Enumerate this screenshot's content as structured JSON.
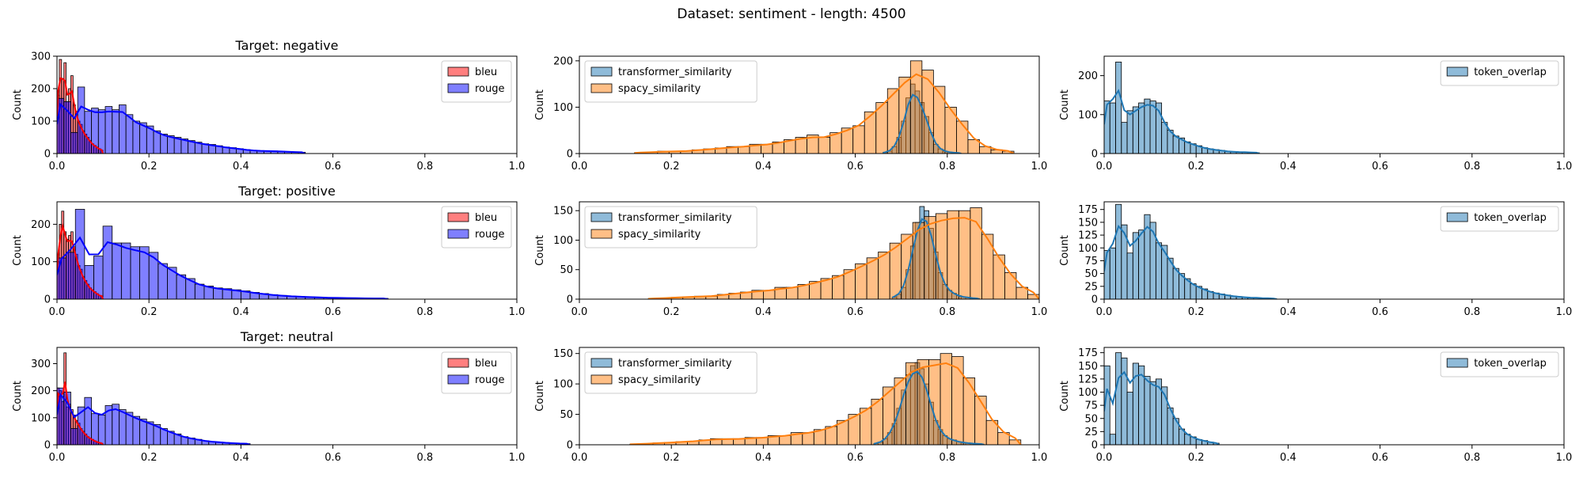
{
  "suptitle": "Dataset: sentiment - length: 4500",
  "colors": {
    "bleu": "#ff0000",
    "rouge": "#0000ff",
    "transformer_similarity": "#1f77b4",
    "spacy_similarity": "#ff7f0e",
    "token_overlap": "#1f77b4"
  },
  "chart_data": [
    {
      "type": "histogram",
      "row": 0,
      "col": 0,
      "title": "Target: negative",
      "ylabel": "Count",
      "xlim": [
        0,
        1
      ],
      "ylim": [
        0,
        300
      ],
      "xticks": [
        0.0,
        0.2,
        0.4,
        0.6,
        0.8,
        1.0
      ],
      "yticks": [
        0,
        100,
        200,
        300
      ],
      "legend": "top-right",
      "kde": true,
      "series": [
        {
          "name": "bleu",
          "color": "#ff0000",
          "bin_start": 0.0,
          "bin_width": 0.005,
          "counts": [
            180,
            290,
            230,
            280,
            160,
            200,
            240,
            150,
            130,
            100,
            90,
            70,
            60,
            50,
            40,
            30,
            25,
            20,
            15,
            10
          ]
        },
        {
          "name": "rouge",
          "color": "#0000ff",
          "bin_start": 0.0,
          "bin_width": 0.015,
          "counts": [
            170,
            160,
            65,
            205,
            130,
            140,
            135,
            145,
            135,
            150,
            120,
            100,
            95,
            85,
            70,
            60,
            55,
            50,
            45,
            40,
            35,
            30,
            28,
            24,
            20,
            18,
            15,
            12,
            10,
            9,
            8,
            8,
            7,
            6,
            5,
            4
          ]
        }
      ]
    },
    {
      "type": "histogram",
      "row": 0,
      "col": 1,
      "ylabel": "Count",
      "xlim": [
        0,
        1
      ],
      "ylim": [
        0,
        210
      ],
      "xticks": [
        0.0,
        0.2,
        0.4,
        0.6,
        0.8,
        1.0
      ],
      "yticks": [
        0,
        100,
        200
      ],
      "legend": "top-left",
      "kde": true,
      "series": [
        {
          "name": "transformer_similarity",
          "color": "#1f77b4",
          "bin_start": 0.66,
          "bin_width": 0.01,
          "counts": [
            2,
            5,
            15,
            35,
            70,
            120,
            150,
            135,
            110,
            80,
            45,
            20,
            10,
            5,
            3,
            2,
            1
          ]
        },
        {
          "name": "spacy_similarity",
          "color": "#ff7f0e",
          "bin_start": 0.12,
          "bin_width": 0.025,
          "counts": [
            2,
            3,
            5,
            5,
            5,
            8,
            10,
            12,
            15,
            15,
            20,
            20,
            25,
            30,
            35,
            40,
            35,
            45,
            55,
            60,
            90,
            110,
            140,
            165,
            200,
            180,
            145,
            100,
            70,
            30,
            15,
            8,
            5
          ]
        }
      ]
    },
    {
      "type": "histogram",
      "row": 0,
      "col": 2,
      "ylabel": "Count",
      "xlim": [
        0,
        1
      ],
      "ylim": [
        0,
        250
      ],
      "xticks": [
        0.0,
        0.2,
        0.4,
        0.6,
        0.8,
        1.0
      ],
      "yticks": [
        0,
        100,
        200
      ],
      "legend": "top-right",
      "kde": true,
      "series": [
        {
          "name": "token_overlap",
          "color": "#1f77b4",
          "bin_start": 0.0,
          "bin_width": 0.0125,
          "counts": [
            135,
            130,
            235,
            80,
            110,
            120,
            130,
            140,
            135,
            130,
            80,
            60,
            45,
            40,
            30,
            25,
            20,
            15,
            12,
            10,
            8,
            6,
            5,
            4,
            4,
            3,
            2
          ]
        }
      ]
    },
    {
      "type": "histogram",
      "row": 1,
      "col": 0,
      "title": "Target: positive",
      "ylabel": "Count",
      "xlim": [
        0,
        1
      ],
      "ylim": [
        0,
        260
      ],
      "xticks": [
        0.0,
        0.2,
        0.4,
        0.6,
        0.8,
        1.0
      ],
      "yticks": [
        0,
        100,
        200
      ],
      "legend": "top-right",
      "kde": true,
      "series": [
        {
          "name": "bleu",
          "color": "#ff0000",
          "bin_start": 0.0,
          "bin_width": 0.005,
          "counts": [
            100,
            200,
            235,
            180,
            160,
            170,
            180,
            140,
            120,
            90,
            80,
            60,
            50,
            40,
            30,
            25,
            20,
            15,
            10,
            8
          ]
        },
        {
          "name": "rouge",
          "color": "#0000ff",
          "bin_start": 0.0,
          "bin_width": 0.02,
          "counts": [
            110,
            125,
            240,
            90,
            115,
            195,
            150,
            150,
            140,
            140,
            125,
            95,
            85,
            65,
            55,
            40,
            35,
            30,
            28,
            25,
            22,
            18,
            15,
            12,
            10,
            8,
            7,
            6,
            5,
            4,
            4,
            3,
            3,
            2,
            2,
            2
          ]
        }
      ]
    },
    {
      "type": "histogram",
      "row": 1,
      "col": 1,
      "ylabel": "Count",
      "xlim": [
        0,
        1
      ],
      "ylim": [
        0,
        165
      ],
      "xticks": [
        0.0,
        0.2,
        0.4,
        0.6,
        0.8,
        1.0
      ],
      "yticks": [
        0,
        50,
        100,
        150
      ],
      "legend": "top-left",
      "kde": true,
      "series": [
        {
          "name": "transformer_similarity",
          "color": "#1f77b4",
          "bin_start": 0.68,
          "bin_width": 0.01,
          "counts": [
            3,
            8,
            20,
            50,
            90,
            130,
            157,
            150,
            120,
            80,
            45,
            25,
            15,
            10,
            6,
            4,
            3,
            2,
            1
          ]
        },
        {
          "name": "spacy_similarity",
          "color": "#ff7f0e",
          "bin_start": 0.15,
          "bin_width": 0.025,
          "counts": [
            1,
            2,
            3,
            4,
            5,
            5,
            8,
            10,
            12,
            15,
            15,
            20,
            20,
            25,
            30,
            35,
            40,
            50,
            60,
            70,
            80,
            95,
            110,
            130,
            140,
            145,
            150,
            150,
            155,
            110,
            75,
            45,
            20,
            8
          ]
        }
      ]
    },
    {
      "type": "histogram",
      "row": 1,
      "col": 2,
      "ylabel": "Count",
      "xlim": [
        0,
        1
      ],
      "ylim": [
        0,
        190
      ],
      "xticks": [
        0.0,
        0.2,
        0.4,
        0.6,
        0.8,
        1.0
      ],
      "yticks": [
        0,
        25,
        50,
        75,
        100,
        125,
        150,
        175
      ],
      "legend": "top-right",
      "kde": true,
      "series": [
        {
          "name": "token_overlap",
          "color": "#1f77b4",
          "bin_start": 0.0,
          "bin_width": 0.0125,
          "counts": [
            95,
            100,
            185,
            145,
            90,
            130,
            135,
            165,
            150,
            110,
            105,
            80,
            60,
            50,
            40,
            30,
            25,
            20,
            15,
            12,
            10,
            8,
            6,
            5,
            4,
            3,
            3,
            2,
            2,
            1
          ]
        }
      ]
    },
    {
      "type": "histogram",
      "row": 2,
      "col": 0,
      "title": "Target: neutral",
      "ylabel": "Count",
      "xlim": [
        0,
        1
      ],
      "ylim": [
        0,
        360
      ],
      "xticks": [
        0.0,
        0.2,
        0.4,
        0.6,
        0.8,
        1.0
      ],
      "yticks": [
        0,
        100,
        200,
        300
      ],
      "legend": "top-right",
      "kde": true,
      "series": [
        {
          "name": "bleu",
          "color": "#ff0000",
          "bin_start": 0.0,
          "bin_width": 0.005,
          "counts": [
            210,
            200,
            160,
            340,
            140,
            150,
            130,
            110,
            90,
            80,
            60,
            50,
            40,
            30,
            25,
            20,
            15,
            10,
            8,
            5
          ]
        },
        {
          "name": "rouge",
          "color": "#0000ff",
          "bin_start": 0.0,
          "bin_width": 0.015,
          "counts": [
            210,
            195,
            60,
            140,
            175,
            115,
            110,
            145,
            150,
            130,
            120,
            105,
            95,
            85,
            75,
            60,
            50,
            40,
            30,
            25,
            20,
            15,
            12,
            10,
            8,
            6,
            5,
            4
          ]
        }
      ]
    },
    {
      "type": "histogram",
      "row": 2,
      "col": 1,
      "ylabel": "Count",
      "xlim": [
        0,
        1
      ],
      "ylim": [
        0,
        160
      ],
      "xticks": [
        0.0,
        0.2,
        0.4,
        0.6,
        0.8,
        1.0
      ],
      "yticks": [
        0,
        50,
        100,
        150
      ],
      "legend": "top-left",
      "kde": true,
      "series": [
        {
          "name": "transformer_similarity",
          "color": "#1f77b4",
          "bin_start": 0.64,
          "bin_width": 0.01,
          "counts": [
            2,
            4,
            10,
            20,
            35,
            60,
            90,
            115,
            130,
            135,
            125,
            100,
            70,
            40,
            25,
            15,
            10,
            8,
            5,
            4,
            3,
            2,
            2,
            1
          ]
        },
        {
          "name": "spacy_similarity",
          "color": "#ff7f0e",
          "bin_start": 0.11,
          "bin_width": 0.025,
          "counts": [
            1,
            2,
            3,
            4,
            5,
            6,
            8,
            10,
            10,
            10,
            12,
            12,
            15,
            15,
            20,
            20,
            25,
            30,
            40,
            50,
            60,
            75,
            95,
            110,
            135,
            140,
            140,
            150,
            145,
            110,
            80,
            40,
            20,
            8
          ]
        }
      ]
    },
    {
      "type": "histogram",
      "row": 2,
      "col": 2,
      "ylabel": "Count",
      "xlim": [
        0,
        1
      ],
      "ylim": [
        0,
        185
      ],
      "xticks": [
        0.0,
        0.2,
        0.4,
        0.6,
        0.8,
        1.0
      ],
      "yticks": [
        0,
        25,
        50,
        75,
        100,
        125,
        150,
        175
      ],
      "legend": "top-right",
      "kde": true,
      "series": [
        {
          "name": "token_overlap",
          "color": "#1f77b4",
          "bin_start": 0.0,
          "bin_width": 0.0125,
          "counts": [
            150,
            20,
            175,
            165,
            100,
            155,
            150,
            130,
            120,
            125,
            110,
            70,
            50,
            30,
            20,
            15,
            10,
            8,
            5,
            3
          ]
        }
      ]
    }
  ]
}
